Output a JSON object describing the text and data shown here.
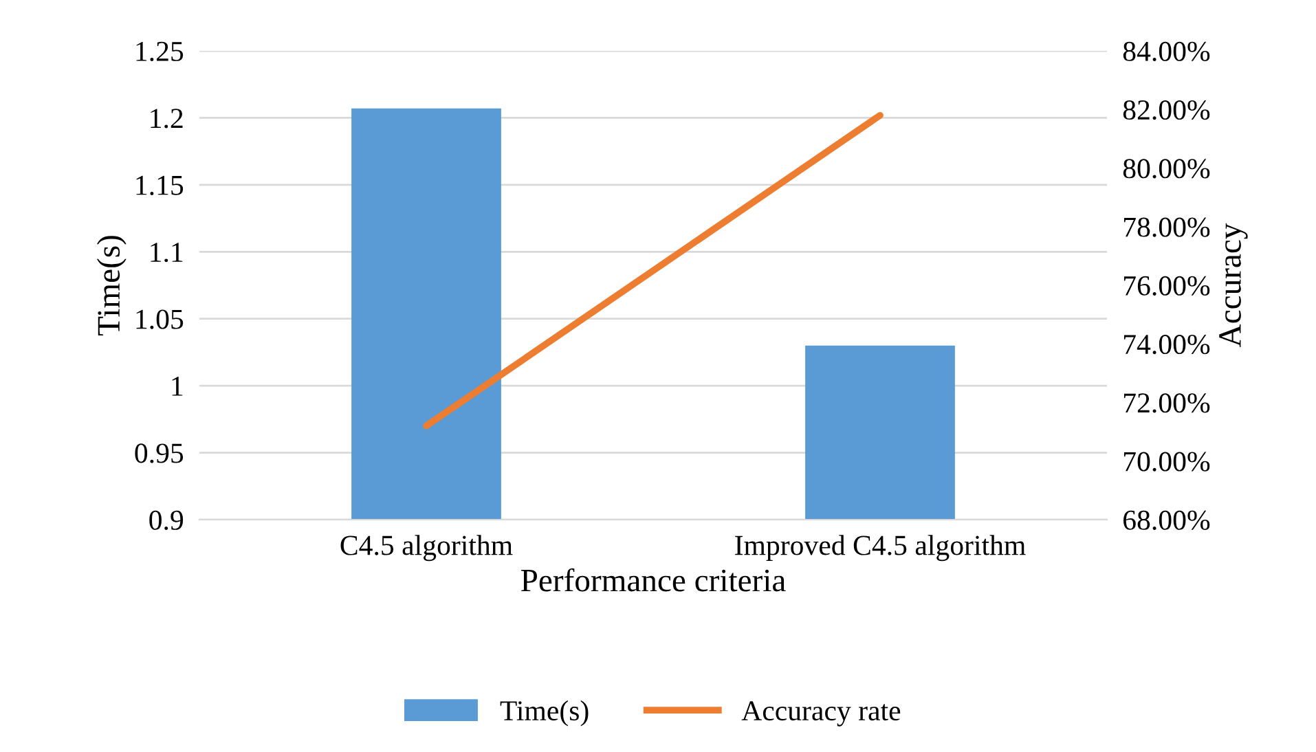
{
  "chart_data": {
    "type": "bar",
    "xlabel": "Performance criteria",
    "ylabel": "Time(s)",
    "y2label": "Accuracy",
    "categories": [
      "C4.5 algorithm",
      "Improved C4.5 algorithm"
    ],
    "series": [
      {
        "name": "Time(s)",
        "color": "#5b9bd5",
        "values": [
          1.207,
          1.03
        ]
      },
      {
        "name": "Accuracy rate",
        "type": "line",
        "axis": "y2",
        "color": "#ed7d31",
        "values": [
          71.2,
          81.8
        ]
      }
    ],
    "ylim": [
      0.9,
      1.25
    ],
    "yticks": [
      0.9,
      0.95,
      1,
      1.05,
      1.1,
      1.15,
      1.2,
      1.25
    ],
    "y2lim": [
      68,
      84
    ],
    "y2ticks": [
      {
        "value": 68,
        "label": "68.00%"
      },
      {
        "value": 70,
        "label": "70.00%"
      },
      {
        "value": 72,
        "label": "72.00%"
      },
      {
        "value": 74,
        "label": "74.00%"
      },
      {
        "value": 76,
        "label": "76.00%"
      },
      {
        "value": 78,
        "label": "78.00%"
      },
      {
        "value": 80,
        "label": "80.00%"
      },
      {
        "value": 82,
        "label": "82.00%"
      },
      {
        "value": 84,
        "label": "84.00%"
      }
    ],
    "grid": "y",
    "legend": "bottom",
    "marker": "none",
    "line_style": "solid"
  }
}
